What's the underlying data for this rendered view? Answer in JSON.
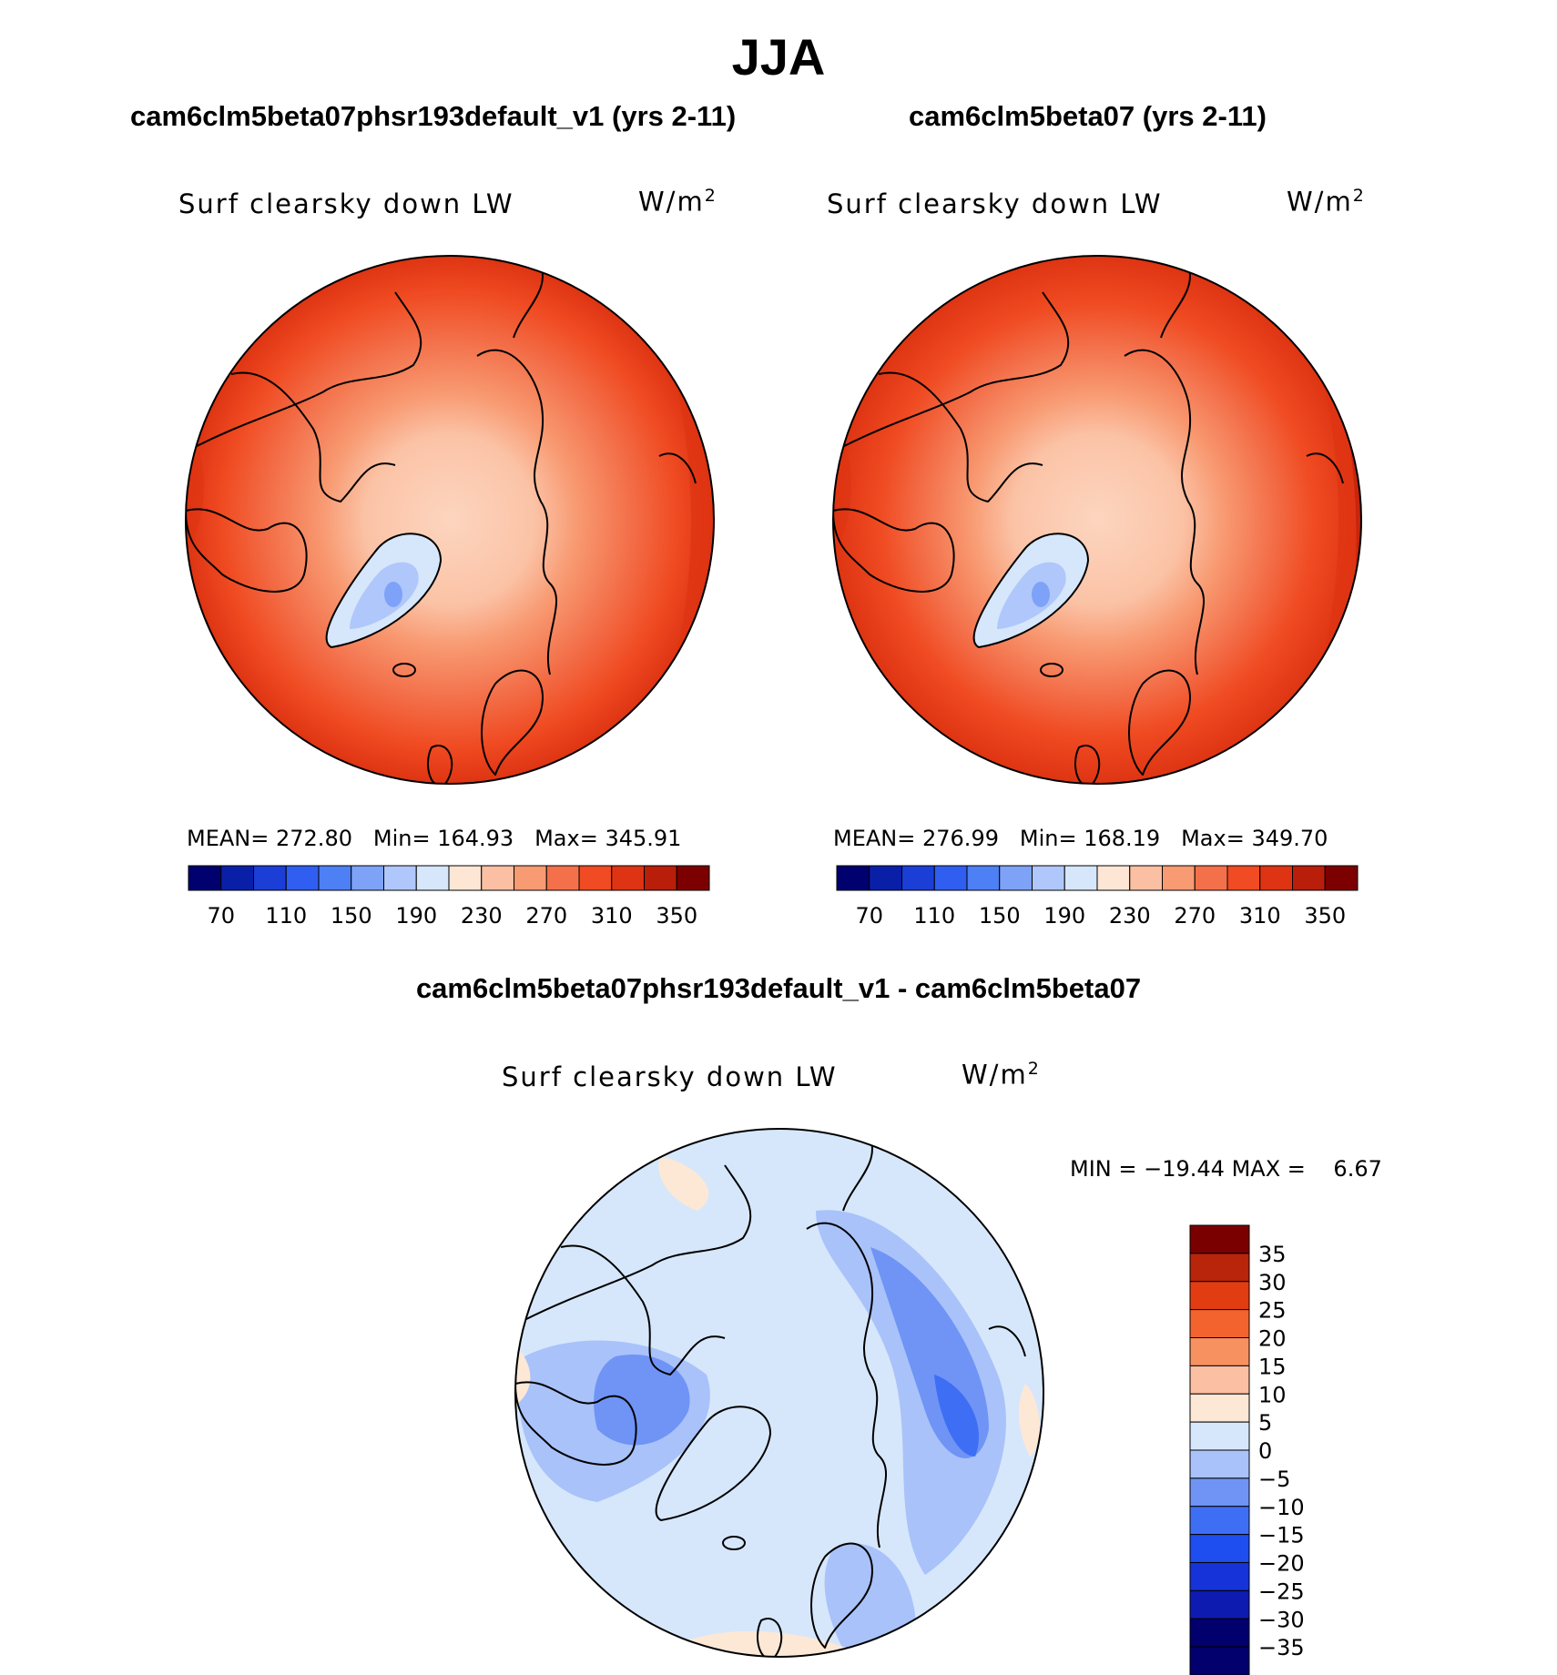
{
  "season": "JJA",
  "variable": "Surf clearsky down LW",
  "units": "W/m",
  "units_exp": "2",
  "colors": {
    "abs_palette": [
      "#00006e",
      "#0a1fa8",
      "#1a3ed6",
      "#2f5ef0",
      "#4d7ff5",
      "#7ea2f7",
      "#b0c7fb",
      "#d6e6fb",
      "#fde6d4",
      "#fbc0a4",
      "#f89a72",
      "#f3704a",
      "#f04b22",
      "#de3413",
      "#b81e0a",
      "#7d0000"
    ],
    "diff_palette": [
      "#01006c",
      "#0d1bb0",
      "#1533d9",
      "#1e4df0",
      "#3e6ef3",
      "#6f94f5",
      "#a9c2f9",
      "#d6e7fb",
      "#fde8d6",
      "#fbbfa4",
      "#f7915f",
      "#f3632d",
      "#e23c12",
      "#b8250a",
      "#7a0000"
    ]
  },
  "chart_data": [
    {
      "type": "heatmap",
      "projection": "north-polar-stereographic",
      "title": "cam6clm5beta07phsr193default_v1 (yrs 2-11)",
      "variable": "Surf clearsky down LW",
      "units": "W/m2",
      "stats": {
        "mean_label": "MEAN=",
        "mean": "272.80",
        "min_label": "Min=",
        "min": "164.93",
        "max_label": "Max=",
        "max": "345.91"
      },
      "colorbar": {
        "levels": [
          70,
          90,
          110,
          130,
          150,
          170,
          190,
          210,
          230,
          250,
          270,
          290,
          310,
          330,
          350
        ],
        "labels": [
          "70",
          "110",
          "150",
          "190",
          "230",
          "270",
          "310",
          "350"
        ]
      }
    },
    {
      "type": "heatmap",
      "projection": "north-polar-stereographic",
      "title": "cam6clm5beta07 (yrs 2-11)",
      "variable": "Surf clearsky down LW",
      "units": "W/m2",
      "stats": {
        "mean_label": "MEAN=",
        "mean": "276.99",
        "min_label": "Min=",
        "min": "168.19",
        "max_label": "Max=",
        "max": "349.70"
      },
      "colorbar": {
        "levels": [
          70,
          90,
          110,
          130,
          150,
          170,
          190,
          210,
          230,
          250,
          270,
          290,
          310,
          330,
          350
        ],
        "labels": [
          "70",
          "110",
          "150",
          "190",
          "230",
          "270",
          "310",
          "350"
        ]
      }
    },
    {
      "type": "heatmap",
      "projection": "north-polar-stereographic",
      "title": "cam6clm5beta07phsr193default_v1 - cam6clm5beta07",
      "variable": "Surf clearsky down LW",
      "units": "W/m2",
      "stats": {
        "min_label": "MIN =",
        "min": "−19.44",
        "max_label": "MAX =",
        "max": "6.67"
      },
      "colorbar": {
        "levels": [
          35,
          30,
          25,
          20,
          15,
          10,
          5,
          0,
          -5,
          -10,
          -15,
          -20,
          -25,
          -30,
          -35
        ],
        "labels": [
          "35",
          "30",
          "25",
          "20",
          "15",
          "10",
          "5",
          "0",
          "−5",
          "−10",
          "−15",
          "−20",
          "−25",
          "−30",
          "−35"
        ]
      }
    }
  ]
}
